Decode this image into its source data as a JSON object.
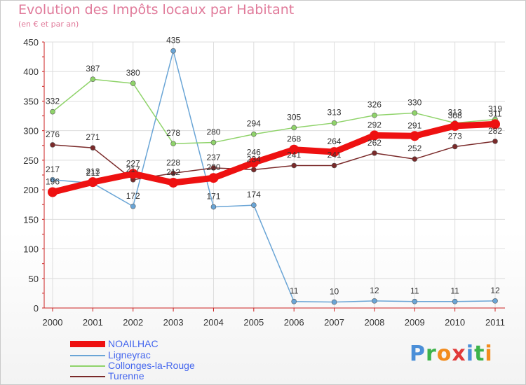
{
  "title": "Evolution des Impôts locaux par Habitant",
  "subtitle": "(en € et par an)",
  "brand": {
    "text": "Proxiti",
    "letters": [
      "P",
      "r",
      "o",
      "x",
      "i",
      "t",
      "i"
    ],
    "letter_colors": [
      "#4b8fd8",
      "#3cb34a",
      "#f28c1e",
      "#e03a3a",
      "#4b8fd8",
      "#3cb34a",
      "#f28c1e"
    ]
  },
  "chart_data": {
    "type": "line",
    "title": "Evolution des Impôts locaux par Habitant",
    "subtitle": "(en € et par an)",
    "x": [
      "2000",
      "2001",
      "2002",
      "2003",
      "2004",
      "2005",
      "2006",
      "2007",
      "2008",
      "2009",
      "2010",
      "2011"
    ],
    "y_ticks": [
      0,
      50,
      100,
      150,
      200,
      250,
      300,
      350,
      400,
      450
    ],
    "ylim": [
      0,
      450
    ],
    "grid": true,
    "legend_position": "bottom-left",
    "series": [
      {
        "name": "NOAILHAC",
        "color": "#ee1111",
        "label_color": "#4466ee",
        "values": [
          196,
          213,
          227,
          212,
          220,
          246,
          268,
          264,
          292,
          291,
          308,
          311
        ]
      },
      {
        "name": "Ligneyrac",
        "color": "#6aa5d6",
        "label_color": "#4466ee",
        "values": [
          217,
          211,
          172,
          435,
          171,
          174,
          11,
          10,
          12,
          11,
          11,
          12
        ]
      },
      {
        "name": "Collonges-la-Rouge",
        "color": "#8fd36a",
        "label_color": "#4466ee",
        "values": [
          332,
          387,
          380,
          278,
          280,
          294,
          305,
          313,
          326,
          330,
          313,
          319
        ]
      },
      {
        "name": "Turenne",
        "color": "#7a2a2a",
        "label_color": "#4466ee",
        "values": [
          276,
          271,
          217,
          228,
          237,
          234,
          241,
          241,
          262,
          252,
          273,
          282
        ]
      }
    ]
  }
}
